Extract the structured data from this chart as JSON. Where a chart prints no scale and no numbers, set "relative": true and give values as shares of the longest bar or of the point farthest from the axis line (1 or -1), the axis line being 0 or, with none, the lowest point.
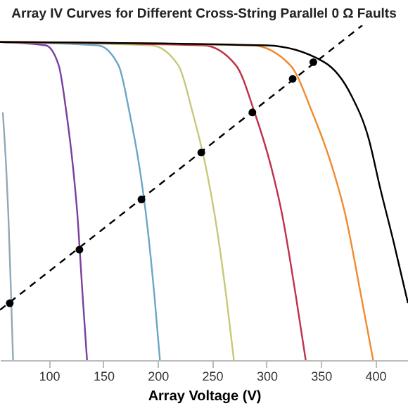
{
  "chart_data": {
    "type": "line",
    "title": "Array IV Curves for Different Cross-String Parallel 0 Ω Faults",
    "xlabel": "Array Voltage (V)",
    "relative": true,
    "xlim": [
      55,
      430
    ],
    "xticks": [
      100,
      150,
      200,
      250,
      300,
      350,
      400
    ],
    "grid": false,
    "series": [
      {
        "color": "#8fa9b8",
        "x": [
          57.6,
          60.6,
          62.6,
          65.2,
          67
        ],
        "values": [
          0.74,
          0.58,
          0.44,
          0.19,
          0
        ]
      },
      {
        "color": "#7b3f9e",
        "x": [
          55,
          97,
          109,
          116,
          122,
          126,
          131,
          135
        ],
        "values": [
          0.95,
          0.94,
          0.88,
          0.74,
          0.58,
          0.44,
          0.19,
          0
        ]
      },
      {
        "color": "#6aa6c8",
        "x": [
          55,
          145,
          164,
          174,
          183,
          189,
          197,
          202
        ],
        "values": [
          0.95,
          0.94,
          0.88,
          0.74,
          0.58,
          0.44,
          0.19,
          0
        ]
      },
      {
        "color": "#c8c87a",
        "x": [
          55,
          194,
          219,
          232,
          244,
          252,
          263,
          270
        ],
        "values": [
          0.95,
          0.94,
          0.88,
          0.74,
          0.58,
          0.44,
          0.19,
          0
        ]
      },
      {
        "color": "#c0304a",
        "x": [
          55,
          242,
          272,
          289,
          304,
          314,
          327,
          336
        ],
        "values": [
          0.95,
          0.94,
          0.88,
          0.74,
          0.58,
          0.44,
          0.19,
          0
        ]
      },
      {
        "color": "#f08a30",
        "x": [
          55,
          287,
          322,
          342,
          360,
          372,
          387,
          398
        ],
        "values": [
          0.95,
          0.94,
          0.88,
          0.74,
          0.58,
          0.44,
          0.19,
          0
        ]
      },
      {
        "color": "#000000",
        "x": [
          55,
          300,
          353,
          378,
          394,
          404,
          417,
          430
        ],
        "values": [
          0.95,
          0.94,
          0.89,
          0.79,
          0.66,
          0.52,
          0.35,
          0.17
        ]
      },
      {
        "color": "#000000",
        "line_style": "dashed",
        "x": [
          55,
          388
        ],
        "values": [
          0.15,
          1.0
        ]
      },
      {
        "type": "scatter",
        "marker": "circle",
        "color": "#000000",
        "x": [
          64,
          128,
          185,
          240,
          287,
          324,
          343
        ],
        "values": [
          0.17,
          0.33,
          0.48,
          0.62,
          0.74,
          0.84,
          0.89
        ]
      }
    ]
  }
}
